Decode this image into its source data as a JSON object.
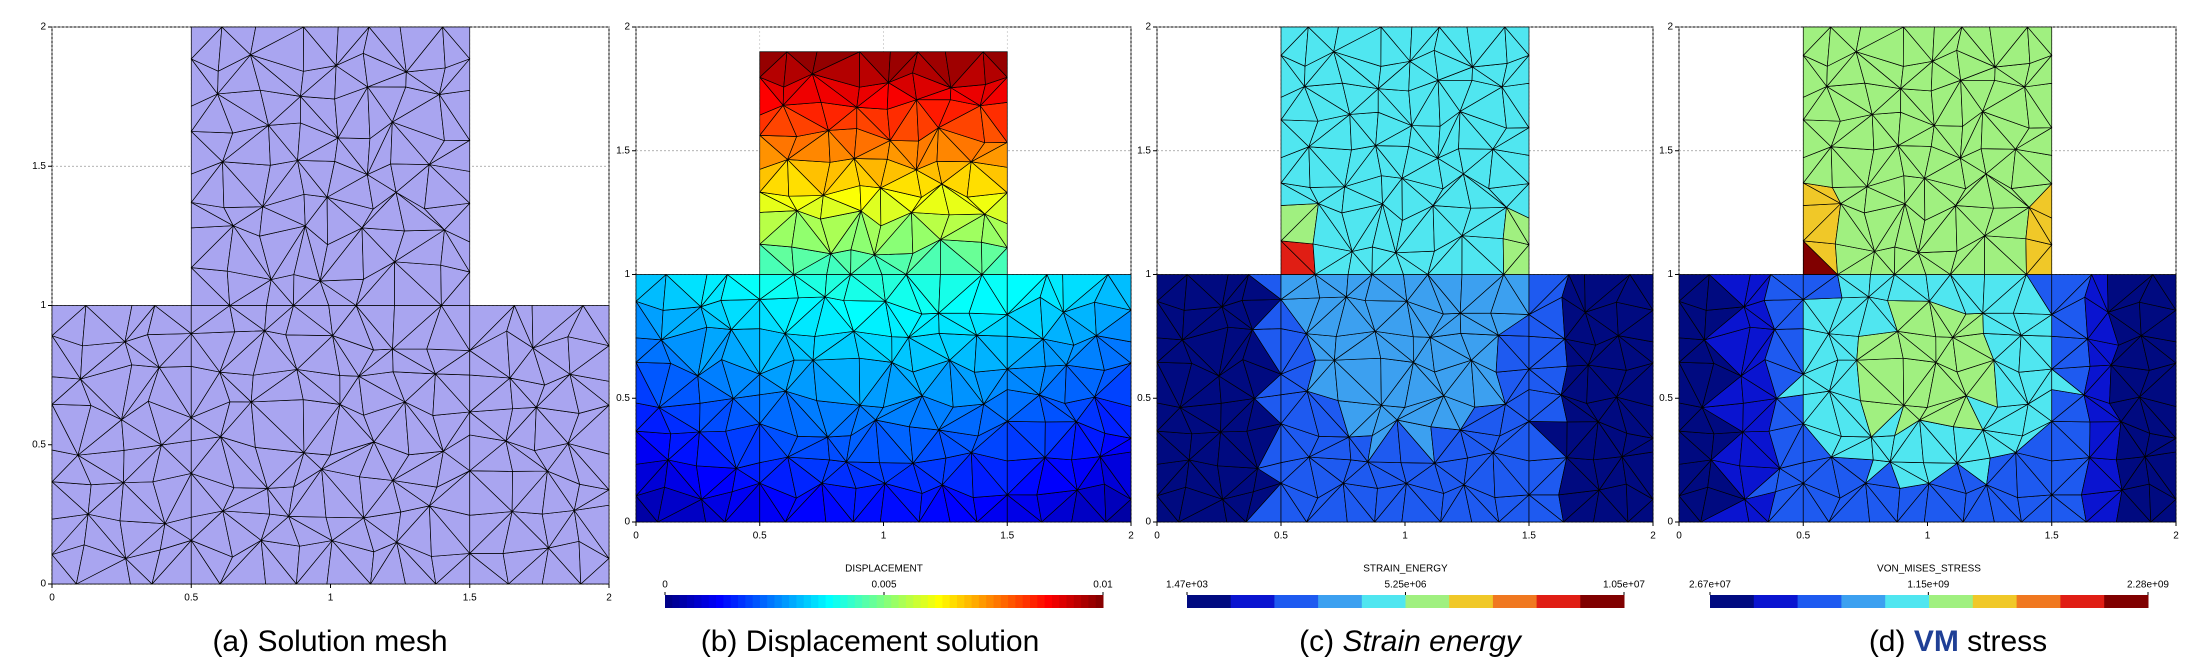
{
  "chart_data": [
    {
      "type": "mesh",
      "caption": {
        "label": "(a)",
        "text": "Solution mesh"
      },
      "xlim": [
        0,
        2
      ],
      "ylim": [
        0,
        2
      ],
      "xticks": [
        0,
        0.5,
        1,
        1.5,
        2
      ],
      "yticks": [
        0,
        0.5,
        1,
        1.5,
        2
      ],
      "grid": true,
      "color": "#a9a5f0"
    },
    {
      "type": "contour",
      "caption": {
        "label": "(b)",
        "text": "Displacement solution"
      },
      "xlim": [
        0,
        2
      ],
      "ylim": [
        0,
        2
      ],
      "xticks": [
        0,
        0.5,
        1,
        1.5,
        2
      ],
      "yticks": [
        0,
        0.5,
        1,
        1.5,
        2
      ],
      "grid": true,
      "colorbar": {
        "label": "DISPLACEMENT",
        "clim": [
          0,
          0.01
        ],
        "cticks": [
          0,
          0.005,
          0.01
        ],
        "colormap": "jet"
      }
    },
    {
      "type": "contour",
      "caption": {
        "label": "(c)",
        "emphasis": "Strain energy"
      },
      "xlim": [
        0,
        2
      ],
      "ylim": [
        0,
        2
      ],
      "xticks": [
        0,
        0.5,
        1,
        1.5,
        2
      ],
      "yticks": [
        0,
        0.5,
        1,
        1.5,
        2
      ],
      "grid": true,
      "colorbar": {
        "label": "STRAIN_ENERGY",
        "clim": [
          1470,
          10500000
        ],
        "cticks": [
          {
            "value": 1470,
            "label": "1.47e+03"
          },
          {
            "value": 5250000,
            "label": "5.25e+06"
          },
          {
            "value": 10500000,
            "label": "1.05e+07"
          }
        ],
        "colors": [
          "#000a80",
          "#0a14d0",
          "#1e5af0",
          "#3ca0f0",
          "#50e6f0",
          "#a0f080",
          "#f0c828",
          "#f07820",
          "#e01e14",
          "#800000"
        ]
      }
    },
    {
      "type": "contour",
      "caption": {
        "label": "(d)",
        "emphasis": "VM",
        "text": "stress"
      },
      "xlim": [
        0,
        2
      ],
      "ylim": [
        0,
        2
      ],
      "xticks": [
        0,
        0.5,
        1,
        1.5,
        2
      ],
      "yticks": [
        0,
        0.5,
        1,
        1.5,
        2
      ],
      "grid": true,
      "colorbar": {
        "label": "VON_MISES_STRESS",
        "clim": [
          26700000,
          2280000000
        ],
        "cticks": [
          {
            "value": 26700000,
            "label": "2.67e+07"
          },
          {
            "value": 1150000000,
            "label": "1.15e+09"
          },
          {
            "value": 2280000000,
            "label": "2.28e+09"
          }
        ],
        "colors": [
          "#000a80",
          "#0a14d0",
          "#1e5af0",
          "#3ca0f0",
          "#50e6f0",
          "#a0f080",
          "#f0c828",
          "#f07820",
          "#e01e14",
          "#800000"
        ]
      }
    }
  ]
}
